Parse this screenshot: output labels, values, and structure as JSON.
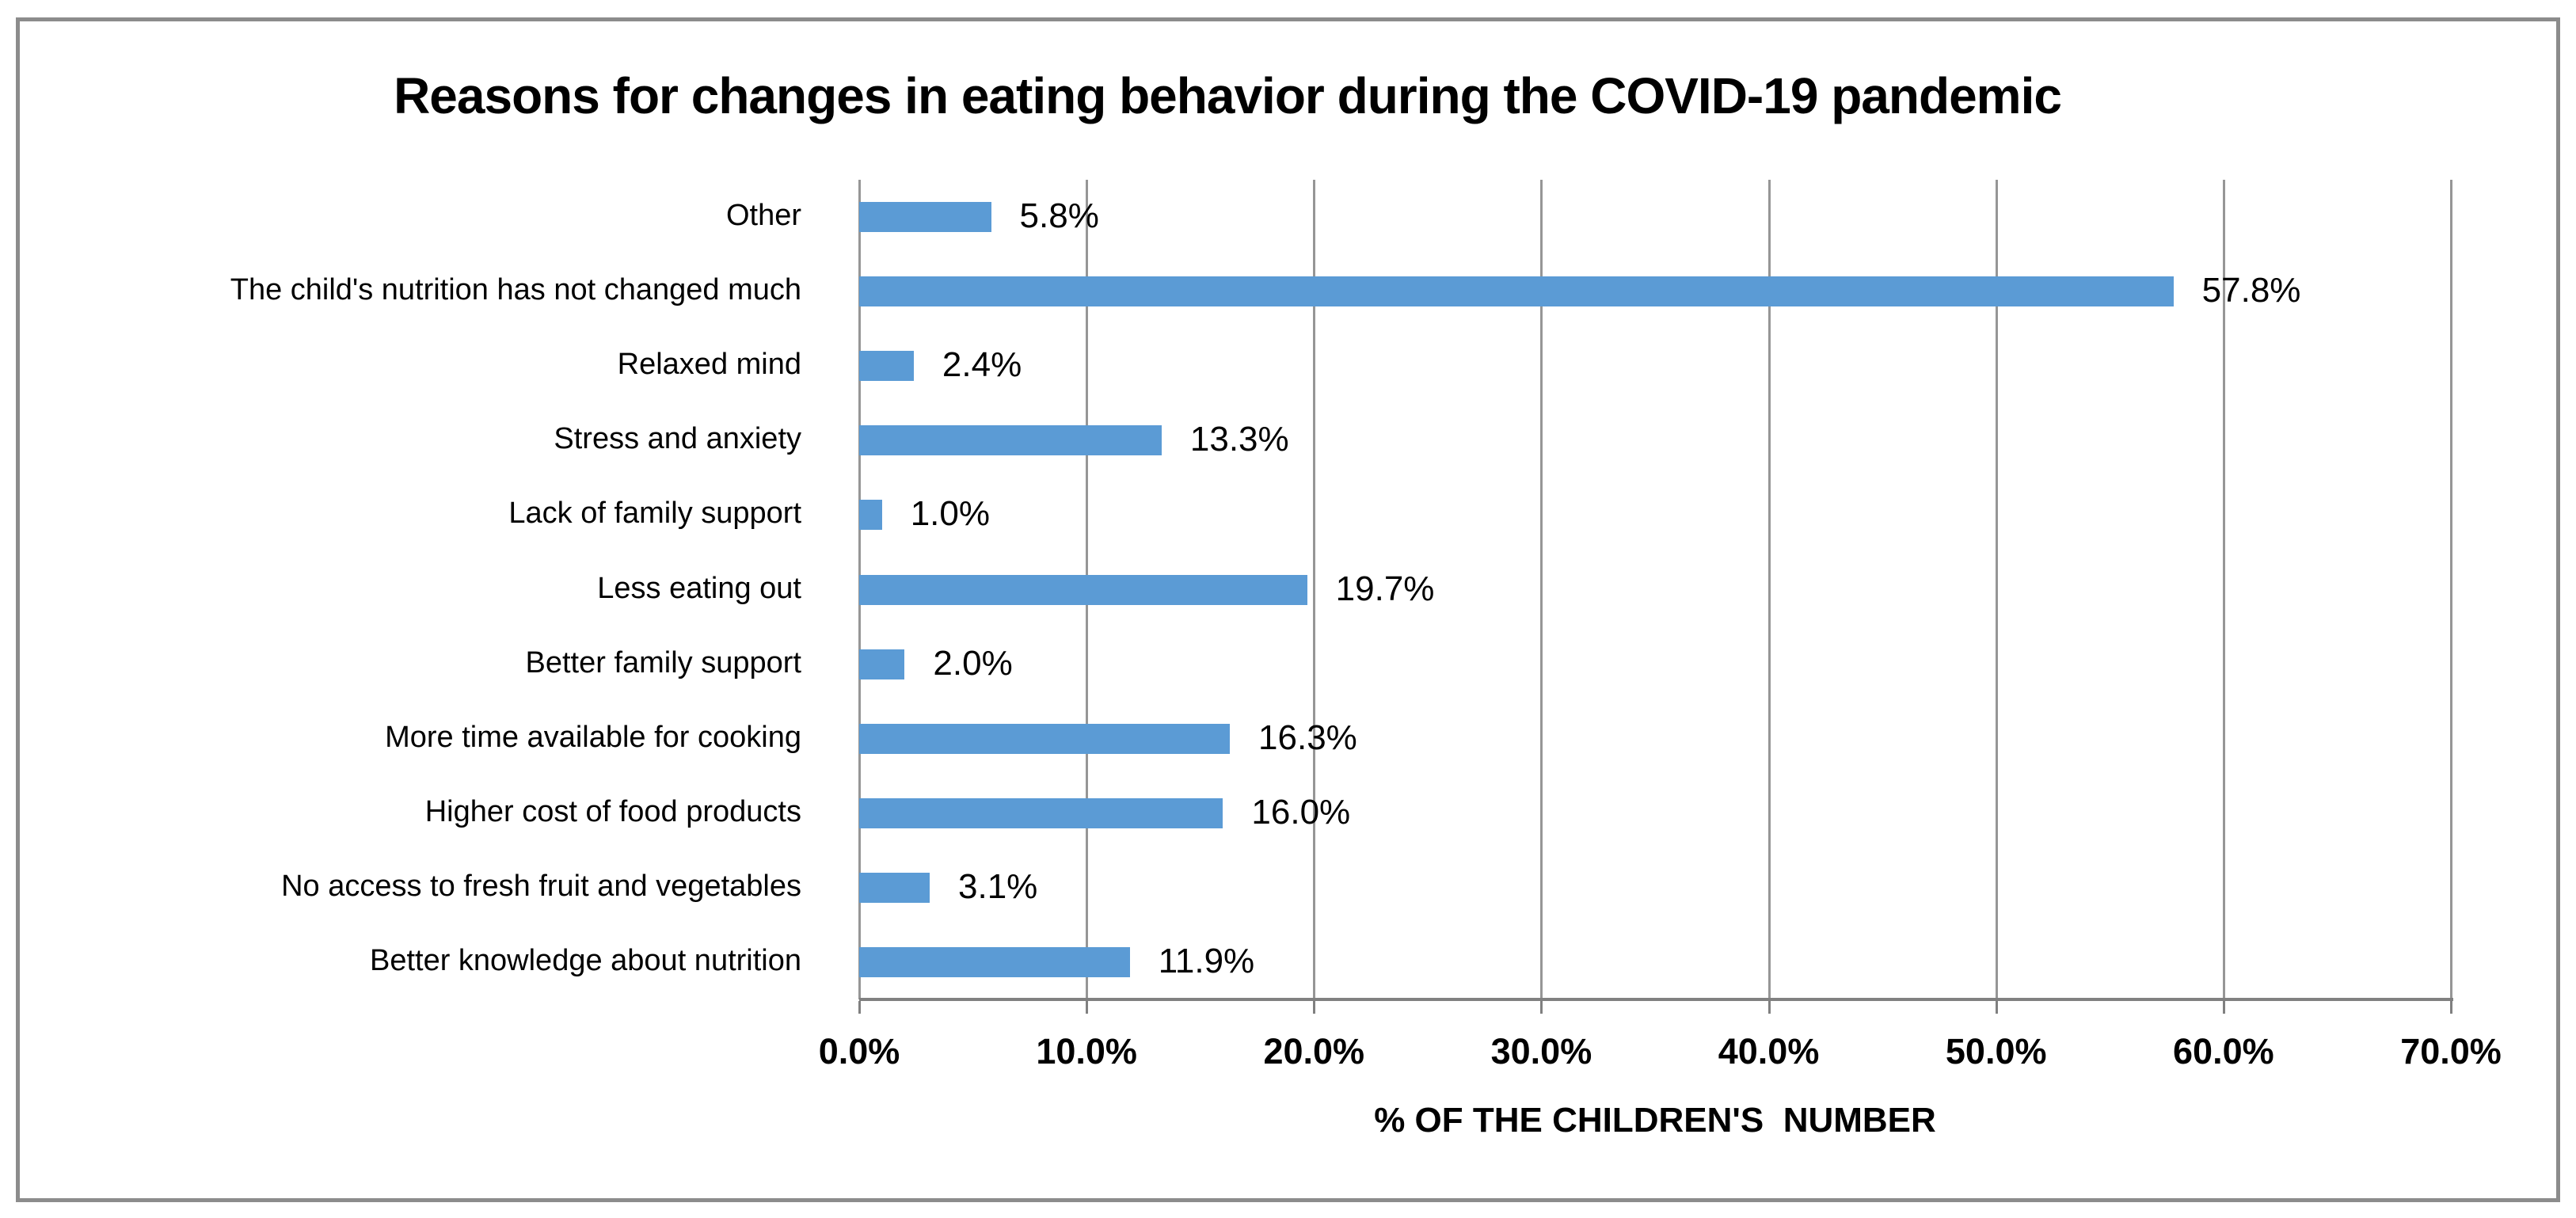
{
  "chart_data": {
    "type": "bar",
    "orientation": "horizontal",
    "title": "Reasons for changes in eating behavior during the COVID-19 pandemic",
    "categories": [
      "Other",
      "The child's nutrition has not changed much",
      "Relaxed mind",
      "Stress and anxiety",
      "Lack of family support",
      "Less eating out",
      "Better family support",
      "More time available for cooking",
      "Higher cost of food products",
      "No access to fresh fruit and vegetables",
      "Better knowledge about nutrition"
    ],
    "values": [
      5.8,
      57.8,
      2.4,
      13.3,
      1.0,
      19.7,
      2.0,
      16.3,
      16.0,
      3.1,
      11.9
    ],
    "value_labels": [
      "5.8%",
      "57.8%",
      "2.4%",
      "13.3%",
      "1.0%",
      "19.7%",
      "2.0%",
      "16.3%",
      "16.0%",
      "3.1%",
      "11.9%"
    ],
    "xlabel": "% OF THE CHILDREN'S  NUMBER",
    "x_tick_labels": [
      "0.0%",
      "10.0%",
      "20.0%",
      "30.0%",
      "40.0%",
      "50.0%",
      "60.0%",
      "70.0%"
    ],
    "x_tick_values": [
      0,
      10,
      20,
      30,
      40,
      50,
      60,
      70
    ],
    "xlim": [
      0,
      70
    ],
    "grid": true,
    "legend": "none",
    "colors": {
      "bar": "#5B9BD5",
      "gridline": "#969696",
      "axis_line": "#808080",
      "border": "#8C8C8C",
      "text": "#000000",
      "background": "#FFFFFF"
    }
  }
}
